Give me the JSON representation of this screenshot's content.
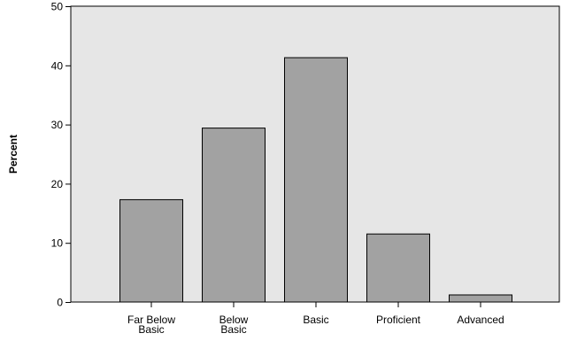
{
  "chart_data": {
    "type": "bar",
    "title": "",
    "xlabel": "",
    "ylabel": "Percent",
    "categories": [
      [
        "Far Below",
        "Basic"
      ],
      [
        "Below",
        "Basic"
      ],
      [
        "Basic"
      ],
      [
        "Proficient"
      ],
      [
        "Advanced"
      ]
    ],
    "values": [
      17.3,
      29.4,
      41.3,
      11.5,
      1.2
    ],
    "ylim": [
      0,
      50
    ],
    "yticks": [
      0,
      10,
      20,
      30,
      40,
      50
    ],
    "grid": false,
    "legend": "none",
    "colors": {
      "plot_background": "#e6e6e6",
      "bar_fill": "#a2a2a2",
      "bar_stroke": "#000000",
      "axis": "#000000"
    }
  }
}
